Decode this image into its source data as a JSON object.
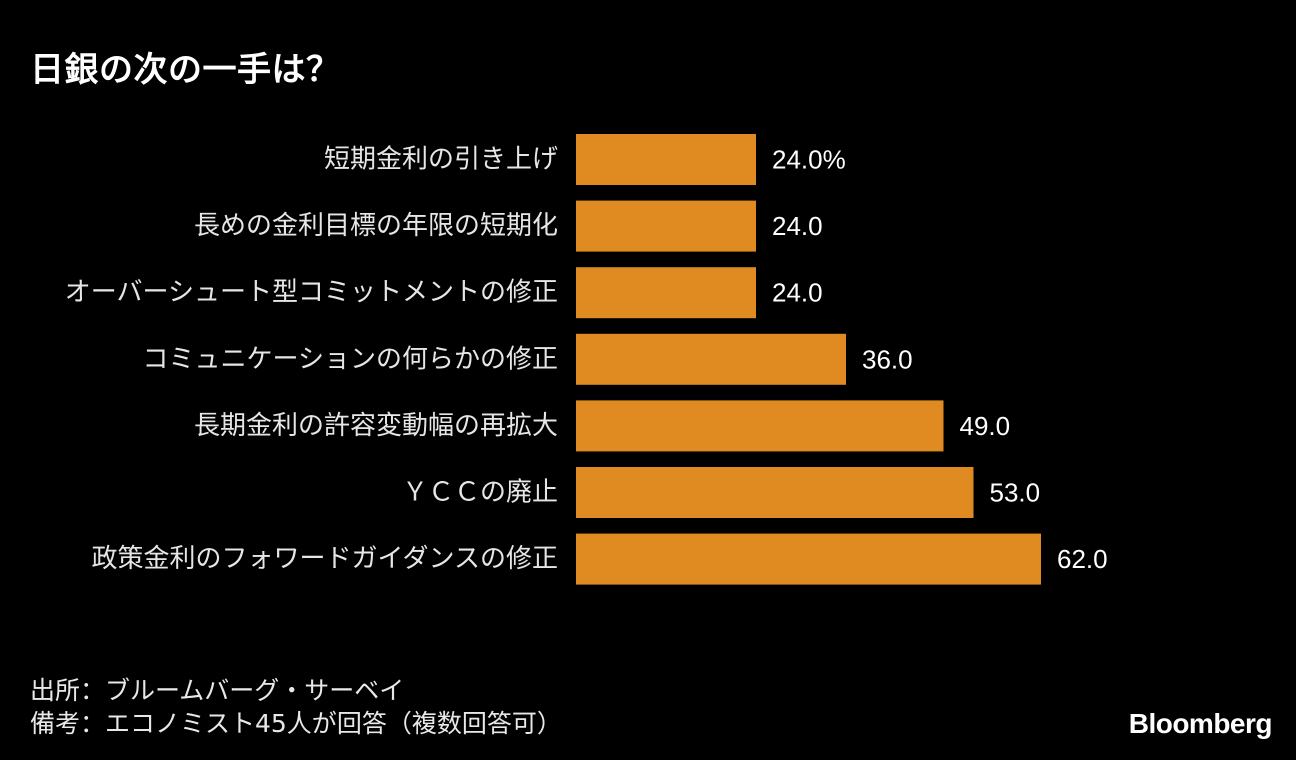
{
  "header": {
    "title": "日銀の次の一手は？"
  },
  "chart_data": {
    "type": "bar",
    "orientation": "horizontal",
    "title": "日銀の次の一手は？",
    "categories": [
      "短期金利の引き上げ",
      "長めの金利目標の年限の短期化",
      "オーバーシュート型コミットメントの修正",
      "コミュニケーションの何らかの修正",
      "長期金利の許容変動幅の再拡大",
      "ＹＣＣの廃止",
      "政策金利のフォワードガイダンスの修正"
    ],
    "values": [
      24.0,
      24.0,
      24.0,
      36.0,
      49.0,
      53.0,
      62.0
    ],
    "value_labels": [
      "24.0%",
      "24.0",
      "24.0",
      "36.0",
      "49.0",
      "53.0",
      "62.0"
    ],
    "xlim": [
      0,
      100
    ],
    "grid": false,
    "legend": "none",
    "bar_color": "#E08A22"
  },
  "footer": {
    "source": "出所：ブルームバーグ・サーベイ",
    "note": "備考：エコノミスト45人が回答（複数回答可）"
  },
  "brand": {
    "name": "Bloomberg"
  },
  "colors": {
    "background": "#000000",
    "text": "#ffffff",
    "bar": "#E08A22"
  }
}
